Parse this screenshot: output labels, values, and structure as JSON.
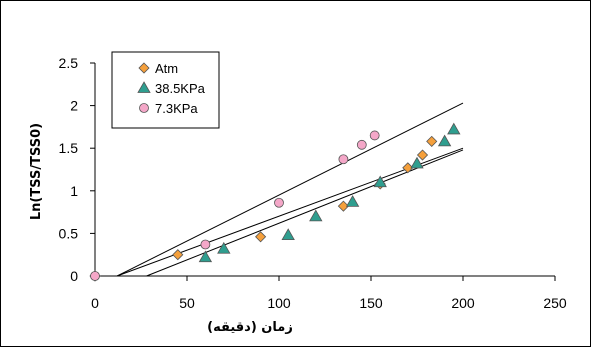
{
  "chart_data": {
    "type": "scatter",
    "xlabel": "زمان (دقيقه)",
    "ylabel": "Ln(TSS/TSS0)",
    "xlim": [
      0,
      250
    ],
    "ylim": [
      0,
      2.5
    ],
    "x_ticks": [
      "0",
      "50",
      "100",
      "150",
      "200",
      "250"
    ],
    "y_ticks": [
      "0",
      "0.5",
      "1",
      "1.5",
      "2",
      "2.5"
    ],
    "grid": false,
    "legend_position": "top-left",
    "series": [
      {
        "name": "Atm",
        "marker": "diamond",
        "color": "#f5a03c",
        "x": [
          0,
          45,
          90,
          135,
          155,
          170,
          178,
          183
        ],
        "y": [
          0,
          0.25,
          0.46,
          0.82,
          1.08,
          1.27,
          1.42,
          1.58
        ],
        "trendline": {
          "x": [
            12,
            200
          ],
          "y": [
            0,
            1.5
          ]
        }
      },
      {
        "name": "38.5KPa",
        "marker": "triangle",
        "color": "#2f9e8f",
        "x": [
          60,
          70,
          105,
          120,
          140,
          155,
          175,
          190,
          195
        ],
        "y": [
          0.22,
          0.32,
          0.48,
          0.7,
          0.87,
          1.1,
          1.32,
          1.58,
          1.72
        ],
        "trendline": {
          "x": [
            28,
            200
          ],
          "y": [
            0,
            1.48
          ]
        }
      },
      {
        "name": "7.3KPa",
        "marker": "circle",
        "color": "#f4a7c8",
        "x": [
          0,
          60,
          100,
          135,
          145,
          152
        ],
        "y": [
          0,
          0.37,
          0.86,
          1.37,
          1.54,
          1.65
        ],
        "trendline": {
          "x": [
            12,
            200
          ],
          "y": [
            0,
            2.03
          ]
        }
      }
    ]
  }
}
